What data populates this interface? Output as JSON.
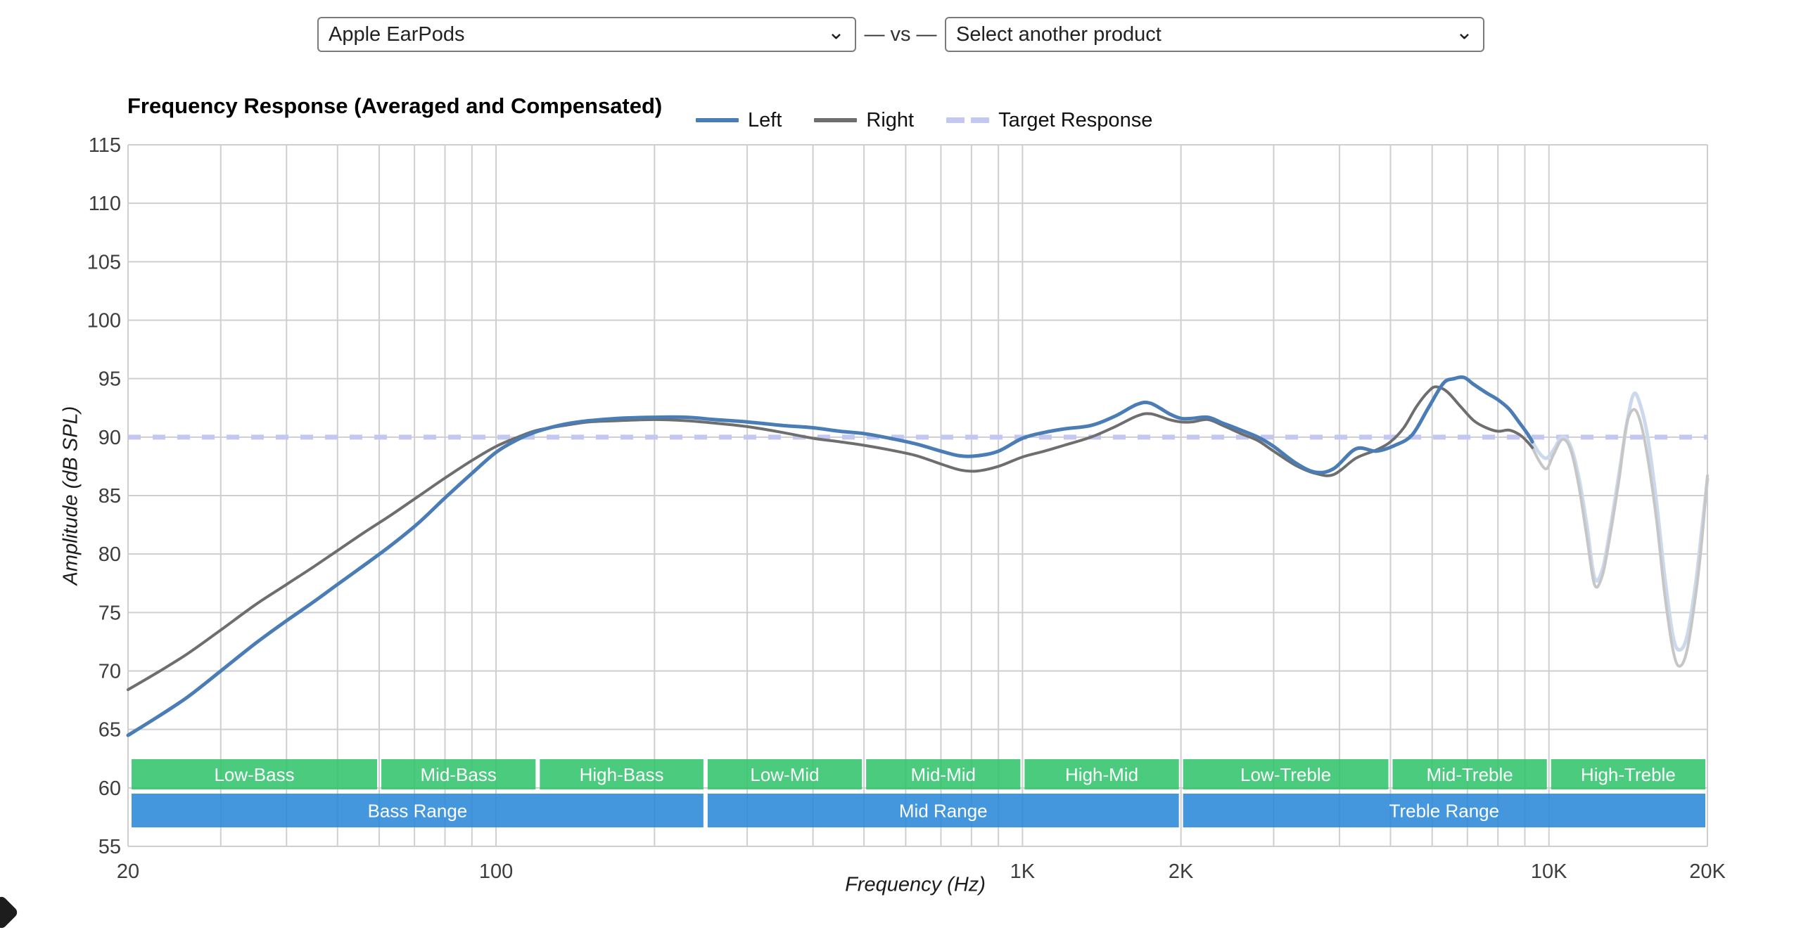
{
  "product_selector": {
    "selected_product": "Apple EarPods",
    "vs_separator": "— vs —",
    "compare_placeholder": "Select another product"
  },
  "chart_data": {
    "type": "line",
    "title": "Frequency Response (Averaged and Compensated)",
    "xlabel": "Frequency (Hz)",
    "ylabel": "Amplitude (dB SPL)",
    "x_scale": "log",
    "x_range": [
      20,
      20000
    ],
    "y_range": [
      55,
      115
    ],
    "y_tick_step": 5,
    "grid": true,
    "legend_position": "top",
    "x_tick_labels": [
      {
        "f": 20,
        "label": "20"
      },
      {
        "f": 100,
        "label": "100"
      },
      {
        "f": 1000,
        "label": "1K"
      },
      {
        "f": 2000,
        "label": "2K"
      },
      {
        "f": 10000,
        "label": "10K"
      },
      {
        "f": 20000,
        "label": "20K"
      }
    ],
    "legend": [
      {
        "name": "Left",
        "style": "solid",
        "color": "#4a7cb5"
      },
      {
        "name": "Right",
        "style": "solid",
        "color": "#6e6e6e"
      },
      {
        "name": "Target Response",
        "style": "dashed",
        "color": "#c3c8f3"
      }
    ],
    "target_response_db": 90,
    "fade_above_hz": 9300,
    "series": [
      {
        "name": "Left",
        "color": "#4a7cb5",
        "faded_color": "#ccd9ec",
        "stroke_width": 5,
        "points": [
          [
            20,
            64.5
          ],
          [
            23,
            66.2
          ],
          [
            26,
            67.8
          ],
          [
            30,
            70.0
          ],
          [
            35,
            72.4
          ],
          [
            40,
            74.3
          ],
          [
            45,
            75.9
          ],
          [
            50,
            77.4
          ],
          [
            56,
            79.0
          ],
          [
            63,
            80.7
          ],
          [
            71,
            82.6
          ],
          [
            80,
            84.8
          ],
          [
            90,
            86.9
          ],
          [
            100,
            88.7
          ],
          [
            110,
            89.8
          ],
          [
            120,
            90.5
          ],
          [
            135,
            91.1
          ],
          [
            150,
            91.4
          ],
          [
            170,
            91.6
          ],
          [
            200,
            91.7
          ],
          [
            230,
            91.7
          ],
          [
            260,
            91.5
          ],
          [
            300,
            91.3
          ],
          [
            350,
            91.0
          ],
          [
            400,
            90.8
          ],
          [
            450,
            90.5
          ],
          [
            500,
            90.3
          ],
          [
            560,
            89.9
          ],
          [
            630,
            89.4
          ],
          [
            700,
            88.8
          ],
          [
            760,
            88.4
          ],
          [
            820,
            88.4
          ],
          [
            900,
            88.8
          ],
          [
            1000,
            89.9
          ],
          [
            1100,
            90.4
          ],
          [
            1200,
            90.7
          ],
          [
            1350,
            91.0
          ],
          [
            1500,
            91.8
          ],
          [
            1650,
            92.8
          ],
          [
            1750,
            92.9
          ],
          [
            1900,
            92.0
          ],
          [
            2000,
            91.6
          ],
          [
            2100,
            91.6
          ],
          [
            2250,
            91.7
          ],
          [
            2400,
            91.2
          ],
          [
            2600,
            90.6
          ],
          [
            2800,
            90.0
          ],
          [
            3000,
            89.2
          ],
          [
            3300,
            87.8
          ],
          [
            3600,
            87.0
          ],
          [
            3900,
            87.3
          ],
          [
            4300,
            89.0
          ],
          [
            4700,
            88.8
          ],
          [
            5100,
            89.3
          ],
          [
            5500,
            90.2
          ],
          [
            5900,
            92.5
          ],
          [
            6300,
            94.6
          ],
          [
            6600,
            95.0
          ],
          [
            6900,
            95.1
          ],
          [
            7200,
            94.5
          ],
          [
            7600,
            93.8
          ],
          [
            8000,
            93.2
          ],
          [
            8400,
            92.4
          ],
          [
            8800,
            91.2
          ],
          [
            9100,
            90.3
          ],
          [
            9300,
            89.6
          ],
          [
            9600,
            88.6
          ],
          [
            9900,
            88.2
          ],
          [
            10200,
            88.9
          ],
          [
            10600,
            90.0
          ],
          [
            11000,
            89.2
          ],
          [
            11400,
            86.5
          ],
          [
            11800,
            82.5
          ],
          [
            12200,
            78.0
          ],
          [
            12600,
            78.5
          ],
          [
            13000,
            81.5
          ],
          [
            13600,
            87.0
          ],
          [
            14100,
            91.5
          ],
          [
            14500,
            93.7
          ],
          [
            14900,
            92.8
          ],
          [
            15400,
            90.0
          ],
          [
            16000,
            84.5
          ],
          [
            16600,
            78.0
          ],
          [
            17200,
            73.0
          ],
          [
            17700,
            71.8
          ],
          [
            18300,
            73.0
          ],
          [
            19000,
            77.5
          ],
          [
            19500,
            82.0
          ],
          [
            20000,
            86.4
          ]
        ]
      },
      {
        "name": "Right",
        "color": "#6e6e6e",
        "faded_color": "#c6c6c6",
        "stroke_width": 4,
        "points": [
          [
            20,
            68.4
          ],
          [
            23,
            70.0
          ],
          [
            26,
            71.5
          ],
          [
            30,
            73.5
          ],
          [
            35,
            75.7
          ],
          [
            40,
            77.4
          ],
          [
            45,
            78.9
          ],
          [
            50,
            80.3
          ],
          [
            56,
            81.8
          ],
          [
            63,
            83.3
          ],
          [
            71,
            84.9
          ],
          [
            80,
            86.5
          ],
          [
            90,
            88.0
          ],
          [
            100,
            89.2
          ],
          [
            110,
            90.0
          ],
          [
            120,
            90.6
          ],
          [
            135,
            91.0
          ],
          [
            150,
            91.3
          ],
          [
            170,
            91.4
          ],
          [
            200,
            91.5
          ],
          [
            230,
            91.4
          ],
          [
            260,
            91.2
          ],
          [
            300,
            90.9
          ],
          [
            350,
            90.4
          ],
          [
            400,
            89.9
          ],
          [
            450,
            89.6
          ],
          [
            500,
            89.3
          ],
          [
            560,
            88.9
          ],
          [
            630,
            88.4
          ],
          [
            700,
            87.7
          ],
          [
            760,
            87.2
          ],
          [
            820,
            87.1
          ],
          [
            900,
            87.5
          ],
          [
            1000,
            88.3
          ],
          [
            1100,
            88.8
          ],
          [
            1200,
            89.3
          ],
          [
            1350,
            90.0
          ],
          [
            1500,
            90.9
          ],
          [
            1650,
            91.8
          ],
          [
            1750,
            92.0
          ],
          [
            1900,
            91.5
          ],
          [
            2000,
            91.3
          ],
          [
            2100,
            91.3
          ],
          [
            2250,
            91.5
          ],
          [
            2400,
            91.0
          ],
          [
            2600,
            90.3
          ],
          [
            2800,
            89.7
          ],
          [
            3000,
            88.8
          ],
          [
            3300,
            87.6
          ],
          [
            3600,
            86.9
          ],
          [
            3900,
            86.8
          ],
          [
            4300,
            88.2
          ],
          [
            4700,
            88.9
          ],
          [
            5000,
            89.6
          ],
          [
            5300,
            90.8
          ],
          [
            5600,
            92.6
          ],
          [
            5900,
            93.9
          ],
          [
            6100,
            94.3
          ],
          [
            6400,
            93.9
          ],
          [
            6800,
            92.6
          ],
          [
            7200,
            91.4
          ],
          [
            7600,
            90.8
          ],
          [
            8000,
            90.5
          ],
          [
            8400,
            90.6
          ],
          [
            8800,
            90.2
          ],
          [
            9100,
            89.6
          ],
          [
            9300,
            89.1
          ],
          [
            9600,
            87.9
          ],
          [
            9900,
            87.3
          ],
          [
            10200,
            88.5
          ],
          [
            10600,
            89.8
          ],
          [
            11000,
            88.9
          ],
          [
            11400,
            85.8
          ],
          [
            11800,
            81.5
          ],
          [
            12200,
            77.4
          ],
          [
            12600,
            78.0
          ],
          [
            13000,
            81.0
          ],
          [
            13600,
            86.5
          ],
          [
            14000,
            90.8
          ],
          [
            14400,
            92.3
          ],
          [
            14800,
            91.8
          ],
          [
            15300,
            89.0
          ],
          [
            16000,
            83.0
          ],
          [
            16600,
            76.5
          ],
          [
            17200,
            71.8
          ],
          [
            17700,
            70.4
          ],
          [
            18300,
            71.8
          ],
          [
            19000,
            76.5
          ],
          [
            19500,
            81.0
          ],
          [
            20000,
            86.7
          ]
        ]
      }
    ],
    "bands": {
      "sub_row": [
        {
          "label": "Low-Bass",
          "range": [
            20,
            60
          ]
        },
        {
          "label": "Mid-Bass",
          "range": [
            60,
            120
          ]
        },
        {
          "label": "High-Bass",
          "range": [
            120,
            250
          ]
        },
        {
          "label": "Low-Mid",
          "range": [
            250,
            500
          ]
        },
        {
          "label": "Mid-Mid",
          "range": [
            500,
            1000
          ]
        },
        {
          "label": "High-Mid",
          "range": [
            1000,
            2000
          ]
        },
        {
          "label": "Low-Treble",
          "range": [
            2000,
            5000
          ]
        },
        {
          "label": "Mid-Treble",
          "range": [
            5000,
            10000
          ]
        },
        {
          "label": "High-Treble",
          "range": [
            10000,
            20000
          ]
        }
      ],
      "main_row": [
        {
          "label": "Bass Range",
          "range": [
            20,
            250
          ]
        },
        {
          "label": "Mid Range",
          "range": [
            250,
            2000
          ]
        },
        {
          "label": "Treble Range",
          "range": [
            2000,
            20000
          ]
        }
      ],
      "sub_color": "#31c46b",
      "main_color": "#2a89d8"
    },
    "colors": {
      "grid": "#cfcfcf",
      "tick_text": "#3d3d3d",
      "target": "#c3c8f3"
    }
  }
}
